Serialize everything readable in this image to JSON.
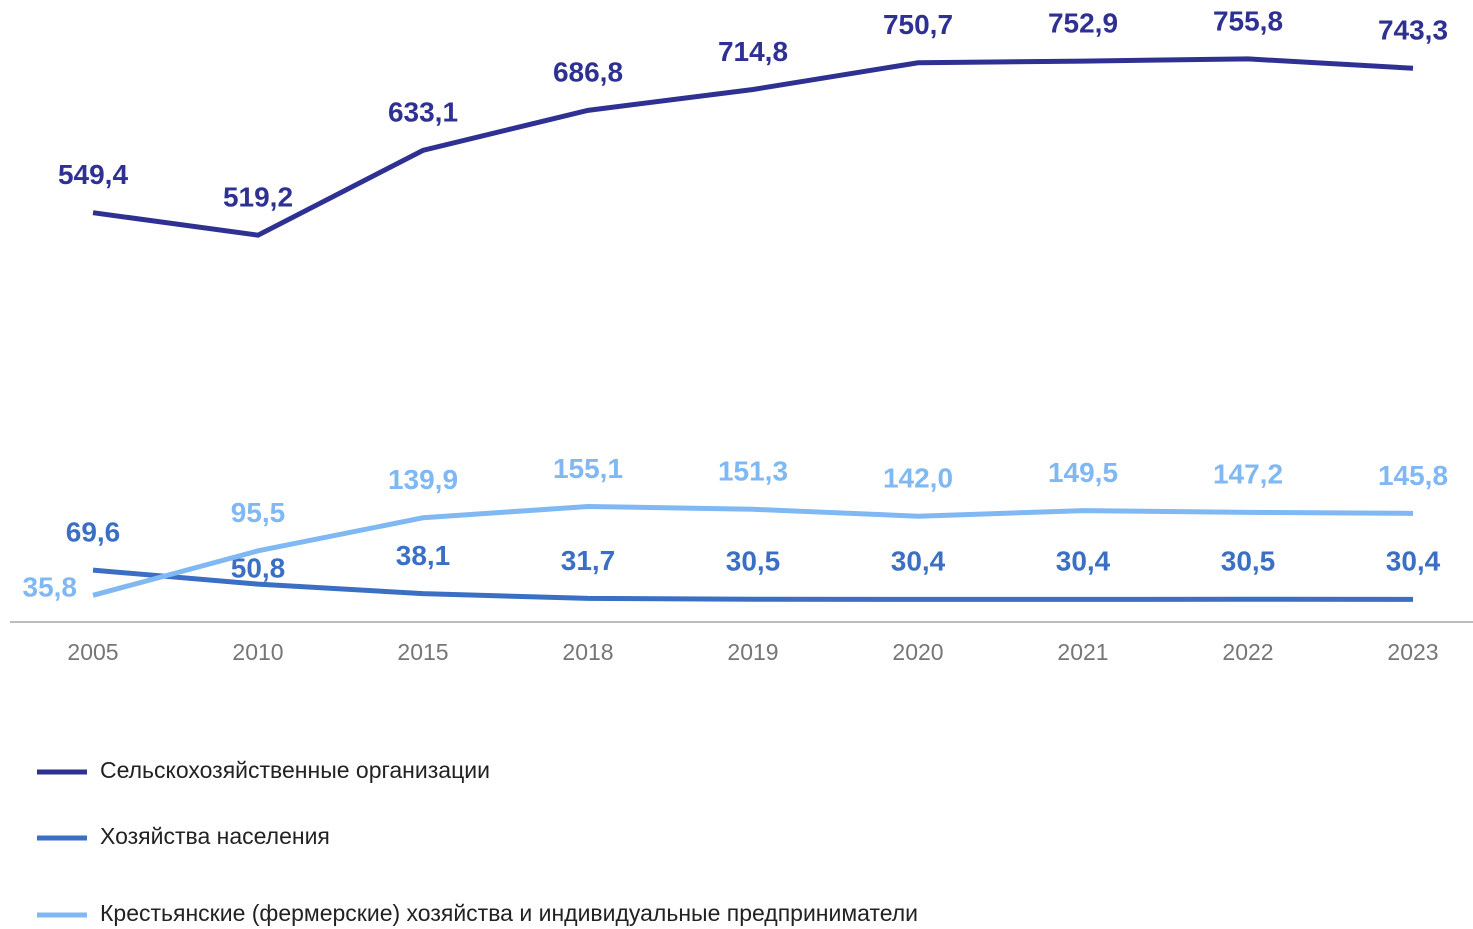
{
  "chart_data": {
    "type": "line",
    "categories": [
      "2005",
      "2010",
      "2015",
      "2018",
      "2019",
      "2020",
      "2021",
      "2022",
      "2023"
    ],
    "series": [
      {
        "name": "Сельскохозяйственные организации",
        "color": "#2e3192",
        "values": [
          549.4,
          519.2,
          633.1,
          686.8,
          714.8,
          750.7,
          752.9,
          755.8,
          743.3
        ],
        "value_labels": [
          "549,4",
          "519,2",
          "633,1",
          "686,8",
          "714,8",
          "750,7",
          "752,9",
          "755,8",
          "743,3"
        ]
      },
      {
        "name": "Хозяйства населения",
        "color": "#3a6fc4",
        "values": [
          69.6,
          50.8,
          38.1,
          31.7,
          30.5,
          30.4,
          30.4,
          30.5,
          30.4
        ],
        "value_labels": [
          "69,6",
          "50,8",
          "38,1",
          "31,7",
          "30,5",
          "30,4",
          "30,4",
          "30,5",
          "30,4"
        ]
      },
      {
        "name": "Крестьянские (фермерские) хозяйства и индивидуальные предприниматели",
        "color": "#7fb8f2",
        "values": [
          35.8,
          95.5,
          139.9,
          155.1,
          151.3,
          142.0,
          149.5,
          147.2,
          145.8
        ],
        "value_labels": [
          "35,8",
          "95,5",
          "139,9",
          "155,1",
          "151,3",
          "142,0",
          "149,5",
          "147,2",
          "145,8"
        ]
      }
    ]
  }
}
